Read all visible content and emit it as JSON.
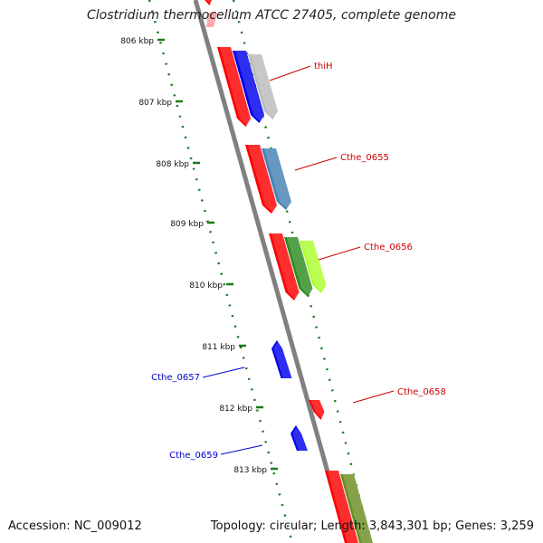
{
  "title": "Clostridium thermocellum ATCC 27405, complete genome",
  "footer": {
    "accession": "Accession: NC_009012",
    "summary": "Topology: circular; Length: 3,843,301 bp; Genes: 3,259"
  },
  "colors": {
    "backbone": "#808080",
    "ruler": "#1a7a1a",
    "forward_label": "#cc0000",
    "reverse_label": "#0000cc"
  },
  "ruler_ticks": [
    {
      "label": "806 kbp"
    },
    {
      "label": "807 kbp"
    },
    {
      "label": "808 kbp"
    },
    {
      "label": "809 kbp"
    },
    {
      "label": "810 kbp"
    },
    {
      "label": "811 kbp"
    },
    {
      "label": "812 kbp"
    },
    {
      "label": "813 kbp"
    }
  ],
  "genes": [
    {
      "label": "thiH",
      "strand": "forward",
      "colors": [
        "#ff0000",
        "#0000ee",
        "#bbbbbb"
      ]
    },
    {
      "label": "Cthe_0655",
      "strand": "forward",
      "colors": [
        "#ff0000",
        "#4682b4"
      ]
    },
    {
      "label": "Cthe_0656",
      "strand": "forward",
      "colors": [
        "#ff0000",
        "#2e8b22",
        "#adff2f"
      ]
    },
    {
      "label": "Cthe_0657",
      "strand": "reverse",
      "colors": [
        "#0000ee"
      ]
    },
    {
      "label": "Cthe_0658",
      "strand": "forward",
      "colors": [
        "#ff0000"
      ]
    },
    {
      "label": "Cthe_0659",
      "strand": "reverse",
      "colors": [
        "#0000ee"
      ]
    },
    {
      "label": "",
      "strand": "forward",
      "colors": [
        "#ff0000",
        "#6b8e23"
      ]
    }
  ]
}
